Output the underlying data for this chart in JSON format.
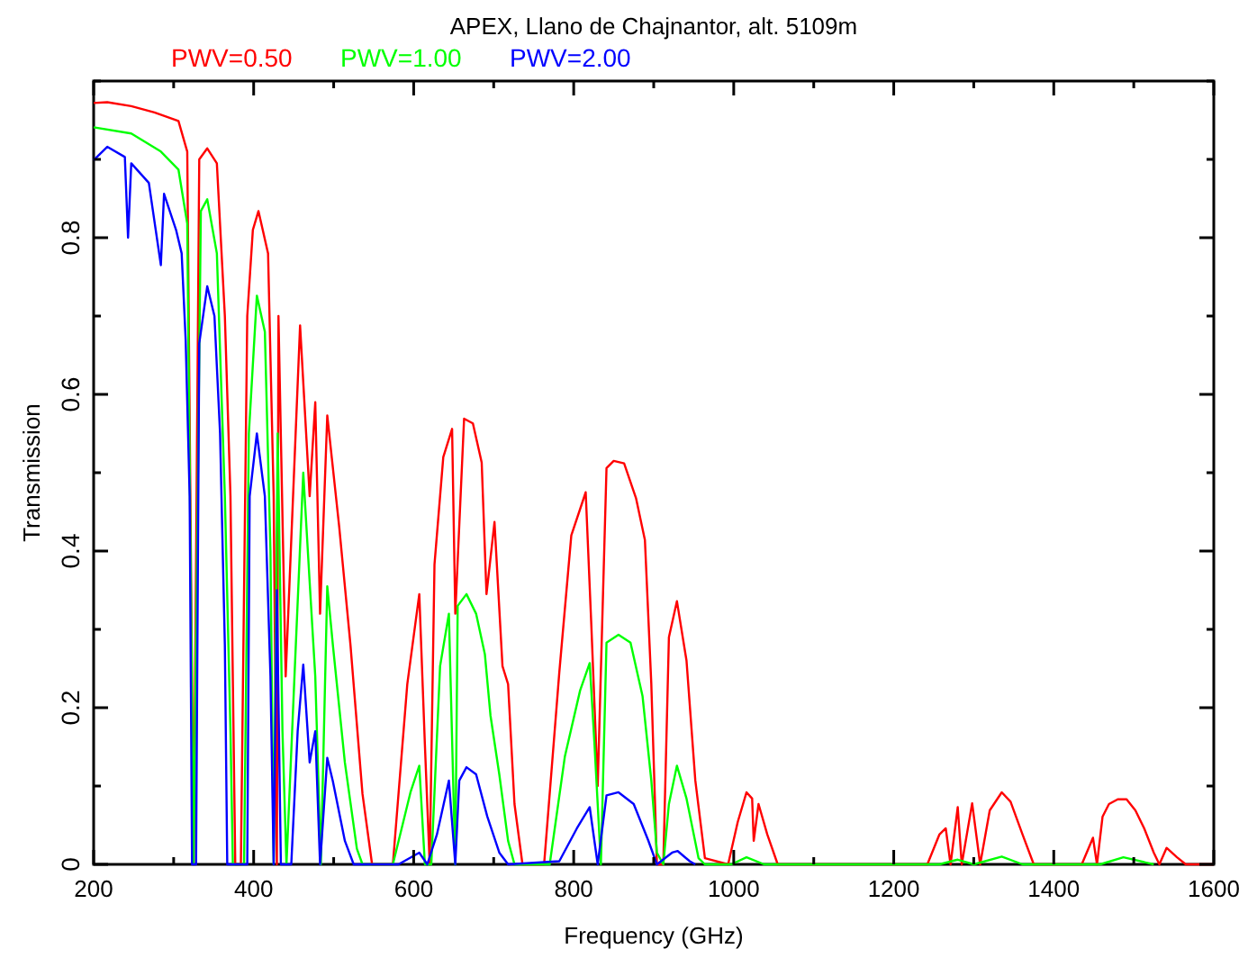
{
  "chart_data": {
    "type": "line",
    "title": "APEX, Llano de Chajnantor, alt. 5109m",
    "xlabel": "Frequency (GHz)",
    "ylabel": "Transmission",
    "xlim": [
      200,
      1600
    ],
    "ylim": [
      0,
      1
    ],
    "xticks": [
      200,
      {
        "value": 300,
        "label": null
      },
      400,
      {
        "value": 500,
        "label": null
      },
      600,
      {
        "value": 700,
        "label": null
      },
      800,
      {
        "value": 900,
        "label": null
      },
      1000,
      {
        "value": 1100,
        "label": null
      },
      1200,
      {
        "value": 1300,
        "label": null
      },
      1400,
      {
        "value": 1500,
        "label": null
      },
      1600
    ],
    "yticks": [
      0,
      {
        "value": 0.1,
        "label": null
      },
      0.2,
      {
        "value": 0.3,
        "label": null
      },
      0.4,
      {
        "value": 0.5,
        "label": null
      },
      0.6,
      {
        "value": 0.7,
        "label": null
      },
      0.8,
      {
        "value": 0.9,
        "label": null
      },
      {
        "value": 1,
        "label": null
      }
    ],
    "grid": false,
    "legend": "top left",
    "marker": "none",
    "line_style": "solid",
    "series": [
      {
        "name": "PWV=0.50",
        "color": "#ff0000",
        "x": [
          200,
          217,
          247,
          276,
          306,
          317,
          325,
          332,
          342,
          354,
          364,
          371,
          377,
          384,
          392,
          399,
          406,
          418,
          425,
          429,
          431,
          440,
          458,
          470,
          477,
          483,
          492,
          507,
          521,
          536,
          548,
          574,
          592,
          607,
          614,
          620,
          626,
          637,
          648,
          652,
          663,
          674,
          685,
          691,
          701,
          711,
          718,
          726,
          736,
          763,
          782,
          797,
          815,
          822,
          830,
          841,
          850,
          863,
          878,
          889,
          897,
          904,
          912,
          919,
          929,
          941,
          952,
          964,
          993,
          1005,
          1016,
          1023,
          1025,
          1031,
          1042,
          1055,
          1242,
          1257,
          1265,
          1271,
          1280,
          1285,
          1298,
          1308,
          1320,
          1335,
          1346,
          1361,
          1375,
          1435,
          1449,
          1454,
          1461,
          1469,
          1480,
          1491,
          1502,
          1513,
          1525,
          1532,
          1541,
          1554,
          1565,
          1600
        ],
        "values": [
          0.972,
          0.973,
          0.968,
          0.96,
          0.949,
          0.91,
          0,
          0.9,
          0.914,
          0.895,
          0.7,
          0.47,
          0,
          0,
          0.7,
          0.81,
          0.834,
          0.78,
          0.47,
          0,
          0.7,
          0.24,
          0.688,
          0.47,
          0.59,
          0.32,
          0.573,
          0.43,
          0.28,
          0.09,
          0,
          0,
          0.23,
          0.345,
          0.153,
          0,
          0.383,
          0.52,
          0.556,
          0.32,
          0.569,
          0.563,
          0.513,
          0.345,
          0.437,
          0.253,
          0.23,
          0.077,
          0,
          0,
          0.245,
          0.42,
          0.475,
          0.306,
          0.1,
          0.506,
          0.515,
          0.512,
          0.467,
          0.414,
          0.23,
          0,
          0,
          0.29,
          0.336,
          0.26,
          0.107,
          0.008,
          0,
          0.054,
          0.092,
          0.084,
          0.03,
          0.077,
          0.038,
          0,
          0,
          0.038,
          0.046,
          0,
          0.073,
          0,
          0.078,
          0,
          0.069,
          0.092,
          0.08,
          0.038,
          0,
          0,
          0.034,
          0,
          0.061,
          0.077,
          0.083,
          0.083,
          0.069,
          0.046,
          0.015,
          0,
          0.021,
          0.009,
          0,
          0
        ]
      },
      {
        "name": "PWV=1.00",
        "color": "#00ff00",
        "x": [
          200,
          247,
          284,
          306,
          317,
          325,
          334,
          342,
          354,
          364,
          371,
          374,
          388,
          394,
          404,
          414,
          421,
          425,
          430,
          436,
          441,
          451,
          462,
          470,
          477,
          484,
          492,
          499,
          514,
          529,
          536,
          574,
          596,
          607,
          614,
          622,
          633,
          644,
          652,
          655,
          666,
          678,
          689,
          696,
          707,
          718,
          726,
          770,
          789,
          808,
          820,
          826,
          834,
          841,
          856,
          871,
          886,
          897,
          904,
          912,
          919,
          929,
          941,
          956,
          964,
          997,
          1016,
          1038,
          1257,
          1280,
          1300,
          1335,
          1361,
          1458,
          1487,
          1525
        ],
        "values": [
          0.941,
          0.933,
          0.91,
          0.887,
          0.818,
          0,
          0.834,
          0.849,
          0.78,
          0.47,
          0.17,
          0,
          0,
          0.55,
          0.726,
          0.68,
          0.4,
          0,
          0.55,
          0.17,
          0,
          0.24,
          0.5,
          0.36,
          0.24,
          0,
          0.355,
          0.28,
          0.13,
          0.02,
          0,
          0,
          0.092,
          0.126,
          0,
          0,
          0.253,
          0.32,
          0,
          0.33,
          0.345,
          0.32,
          0.268,
          0.19,
          0.115,
          0.03,
          0,
          0,
          0.138,
          0.222,
          0.257,
          0.153,
          0,
          0.283,
          0.293,
          0.283,
          0.215,
          0.107,
          0.015,
          0,
          0.077,
          0.126,
          0.084,
          0.008,
          0,
          0,
          0.009,
          0,
          0,
          0.006,
          0,
          0.01,
          0,
          0,
          0.009,
          0
        ]
      },
      {
        "name": "PWV=2.00",
        "color": "#0000ff",
        "x": [
          200,
          217,
          239,
          243,
          247,
          269,
          284,
          288,
          303,
          310,
          315,
          320,
          323,
          328,
          332,
          342,
          351,
          358,
          364,
          367,
          392,
          395,
          404,
          414,
          421,
          425,
          429,
          434,
          447,
          455,
          462,
          470,
          477,
          483,
          492,
          499,
          514,
          525,
          581,
          600,
          607,
          617,
          629,
          644,
          652,
          657,
          666,
          678,
          692,
          707,
          718,
          782,
          804,
          820,
          830,
          841,
          856,
          875,
          893,
          904,
          923,
          930,
          945,
          952
        ],
        "values": [
          0.899,
          0.916,
          0.903,
          0.8,
          0.895,
          0.87,
          0.765,
          0.856,
          0.81,
          0.78,
          0.67,
          0.47,
          0,
          0,
          0.665,
          0.738,
          0.7,
          0.55,
          0.28,
          0,
          0,
          0.47,
          0.55,
          0.47,
          0.24,
          0,
          0.35,
          0,
          0,
          0.17,
          0.255,
          0.13,
          0.17,
          0,
          0.136,
          0.106,
          0.03,
          0,
          0,
          0.011,
          0.015,
          0,
          0.038,
          0.107,
          0,
          0.107,
          0.124,
          0.115,
          0.061,
          0.015,
          0,
          0.004,
          0.046,
          0.073,
          0,
          0.088,
          0.092,
          0.077,
          0.031,
          0,
          0.015,
          0.017,
          0.004,
          0
        ]
      }
    ]
  }
}
